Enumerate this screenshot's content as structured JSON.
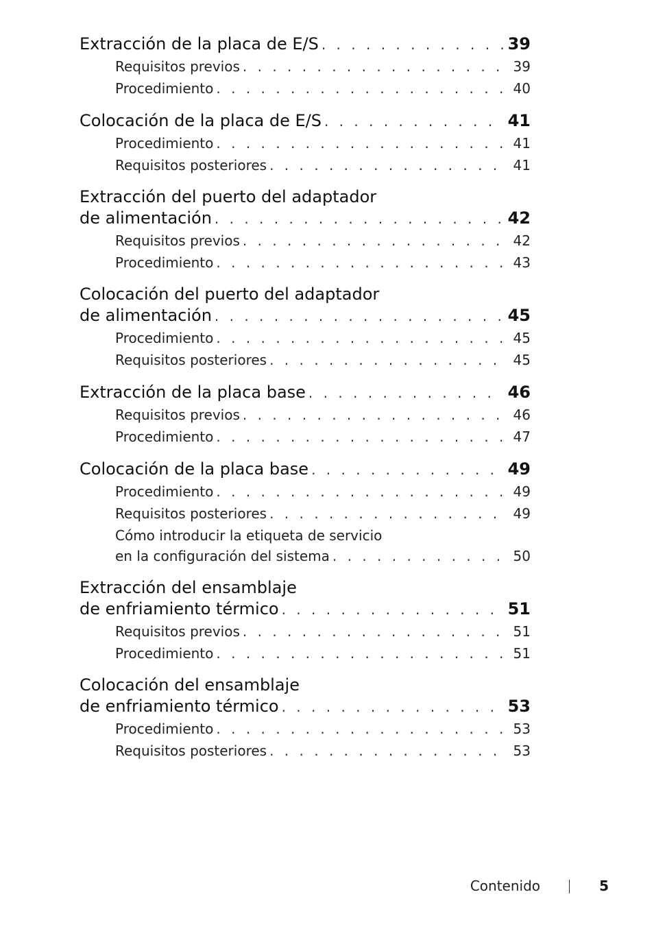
{
  "sections": [
    {
      "title_lines": [
        "Extracción de la placa de E/S"
      ],
      "page": "39",
      "items": [
        {
          "lines": [
            "Requisitos previos"
          ],
          "page": "39"
        },
        {
          "lines": [
            "Procedimiento"
          ],
          "page": "40"
        }
      ]
    },
    {
      "title_lines": [
        "Colocación de la placa de E/S"
      ],
      "page": "41",
      "items": [
        {
          "lines": [
            "Procedimiento"
          ],
          "page": "41"
        },
        {
          "lines": [
            "Requisitos posteriores"
          ],
          "page": "41"
        }
      ]
    },
    {
      "title_lines": [
        "Extracción del puerto del adaptador",
        "de alimentación"
      ],
      "page": "42",
      "items": [
        {
          "lines": [
            "Requisitos previos"
          ],
          "page": "42"
        },
        {
          "lines": [
            "Procedimiento"
          ],
          "page": "43"
        }
      ]
    },
    {
      "title_lines": [
        "Colocación del puerto del adaptador",
        "de alimentación"
      ],
      "page": "45",
      "items": [
        {
          "lines": [
            "Procedimiento"
          ],
          "page": "45"
        },
        {
          "lines": [
            "Requisitos posteriores"
          ],
          "page": "45"
        }
      ]
    },
    {
      "title_lines": [
        "Extracción de la placa base"
      ],
      "page": "46",
      "items": [
        {
          "lines": [
            "Requisitos previos"
          ],
          "page": "46"
        },
        {
          "lines": [
            "Procedimiento"
          ],
          "page": "47"
        }
      ]
    },
    {
      "title_lines": [
        "Colocación de la placa base"
      ],
      "page": "49",
      "items": [
        {
          "lines": [
            "Procedimiento"
          ],
          "page": "49"
        },
        {
          "lines": [
            "Requisitos posteriores"
          ],
          "page": "49"
        },
        {
          "lines": [
            "Cómo introducir la etiqueta de servicio",
            "en la configuración del sistema"
          ],
          "page": "50"
        }
      ]
    },
    {
      "title_lines": [
        "Extracción del ensamblaje",
        "de enfriamiento térmico"
      ],
      "page": "51",
      "items": [
        {
          "lines": [
            "Requisitos previos"
          ],
          "page": "51"
        },
        {
          "lines": [
            "Procedimiento"
          ],
          "page": "51"
        }
      ]
    },
    {
      "title_lines": [
        "Colocación del ensamblaje",
        "de enfriamiento térmico"
      ],
      "page": "53",
      "items": [
        {
          "lines": [
            "Procedimiento"
          ],
          "page": "53"
        },
        {
          "lines": [
            "Requisitos posteriores"
          ],
          "page": "53"
        }
      ]
    }
  ],
  "footer": {
    "label": "Contenido",
    "page_number": "5"
  }
}
